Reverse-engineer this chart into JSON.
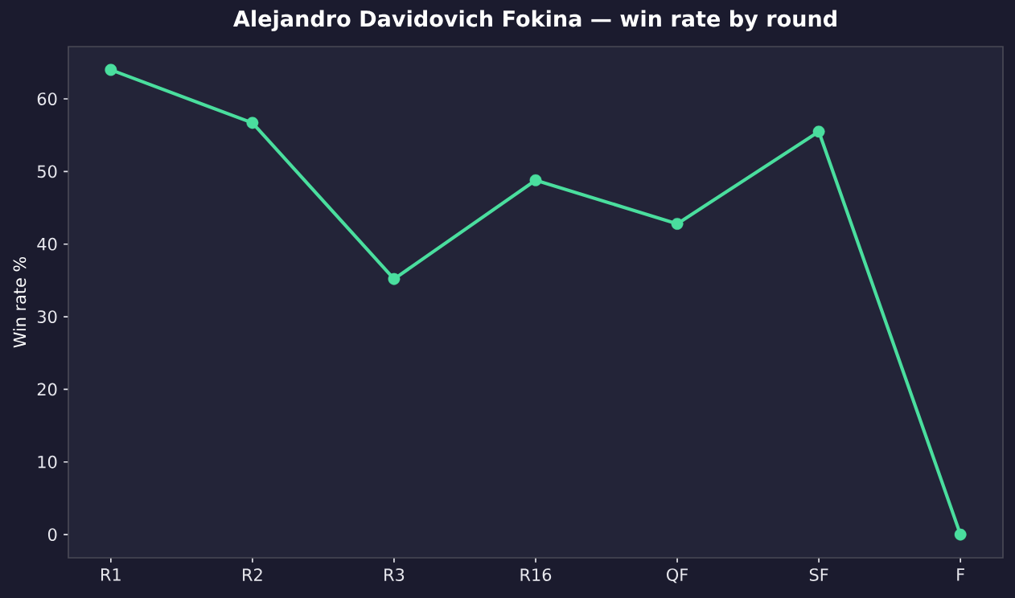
{
  "chart_data": {
    "type": "line",
    "title": "Alejandro Davidovich Fokina — win rate by round",
    "ylabel": "Win rate %",
    "categories": [
      "R1",
      "R2",
      "R3",
      "R16",
      "QF",
      "SF",
      "F"
    ],
    "values": [
      64.0,
      56.7,
      35.2,
      48.8,
      42.8,
      55.5,
      0.0
    ],
    "color": "#4ade9e",
    "ylim": [
      -3.2,
      67.2
    ],
    "yticks": [
      0,
      10,
      20,
      30,
      40,
      50,
      60
    ],
    "marker": "circle",
    "line_style": "solid"
  }
}
